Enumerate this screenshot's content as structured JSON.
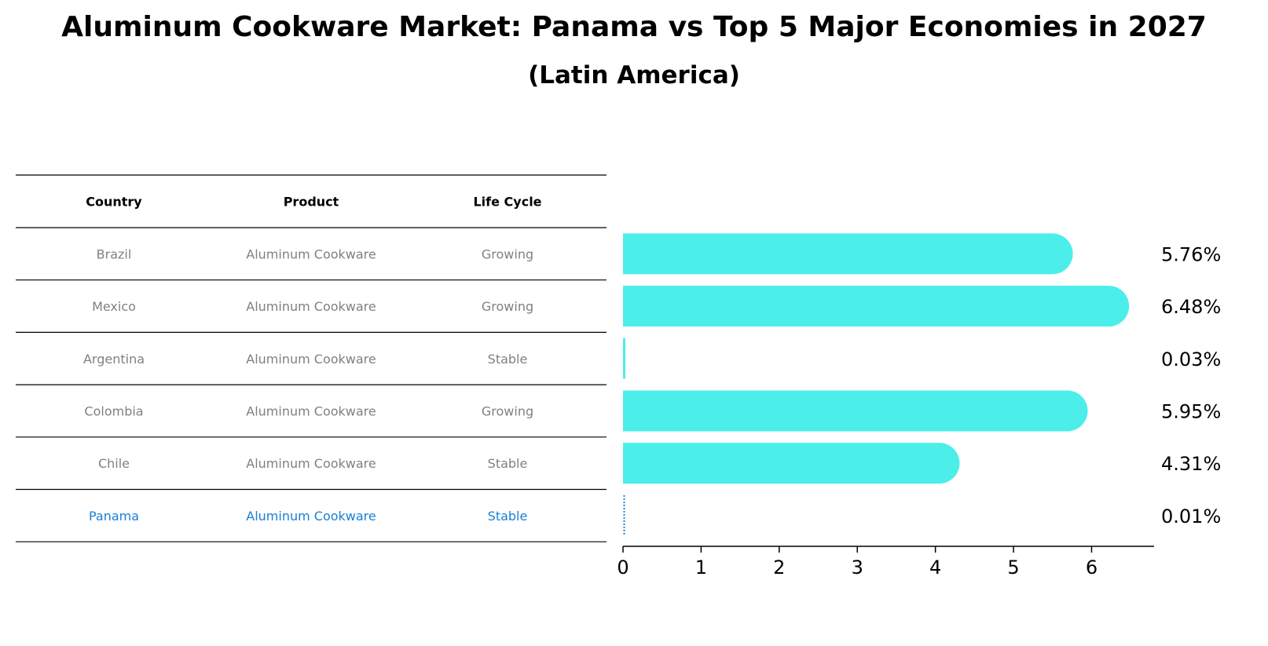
{
  "chart_data": {
    "type": "bar",
    "orientation": "horizontal",
    "title": "Aluminum Cookware Market: Panama vs Top 5 Major Economies in 2027",
    "subtitle": "(Latin America)",
    "table": {
      "headers": [
        "Country",
        "Product",
        "Life Cycle"
      ],
      "rows": [
        {
          "country": "Brazil",
          "product": "Aluminum Cookware",
          "life_cycle": "Growing"
        },
        {
          "country": "Mexico",
          "product": "Aluminum Cookware",
          "life_cycle": "Growing"
        },
        {
          "country": "Argentina",
          "product": "Aluminum Cookware",
          "life_cycle": "Stable"
        },
        {
          "country": "Colombia",
          "product": "Aluminum Cookware",
          "life_cycle": "Growing"
        },
        {
          "country": "Chile",
          "product": "Aluminum Cookware",
          "life_cycle": "Stable"
        },
        {
          "country": "Panama",
          "product": "Aluminum Cookware",
          "life_cycle": "Stable"
        }
      ]
    },
    "categories": [
      "Brazil",
      "Mexico",
      "Argentina",
      "Colombia",
      "Chile",
      "Panama"
    ],
    "values": [
      5.76,
      6.48,
      0.03,
      5.95,
      4.31,
      0.01
    ],
    "value_labels": [
      "5.76%",
      "6.48%",
      "0.03%",
      "5.95%",
      "4.31%",
      "0.01%"
    ],
    "highlight": "Panama",
    "xlim": [
      0,
      6.8
    ],
    "xticks": [
      0,
      1,
      2,
      3,
      4,
      5,
      6
    ],
    "grid": false,
    "colors": {
      "bar": "#4ceeea",
      "highlight": "#1a7fd4",
      "row_text": "#808080",
      "header_text": "#000000",
      "line": "#000000"
    }
  }
}
